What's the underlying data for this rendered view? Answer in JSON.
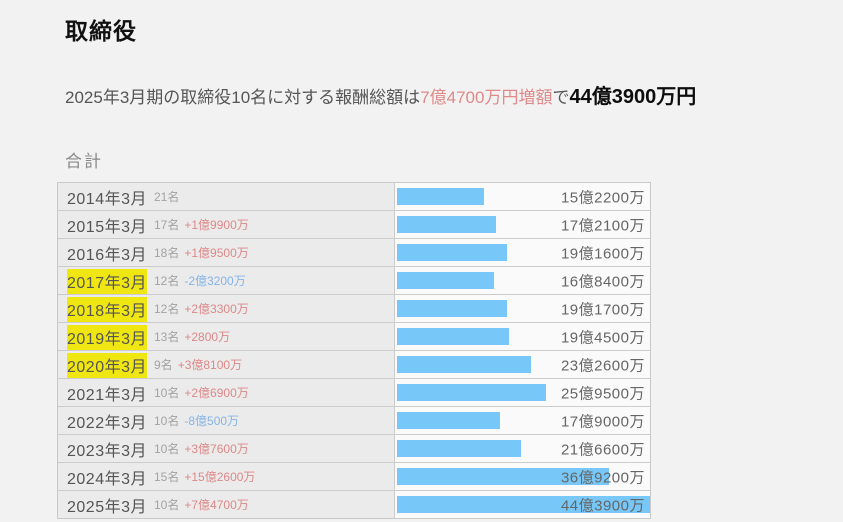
{
  "header": {
    "title": "取締役",
    "subtitle_lead": "2025年3月期の取締役10名に対する報酬総額は",
    "subtitle_increase": "7億4700万円増額",
    "subtitle_connector": "で",
    "subtitle_total": "44億3900万円"
  },
  "section": {
    "label": "合計"
  },
  "colors": {
    "bar": "#77c8f8",
    "highlight": "#f0e611",
    "increase_text": "#dd8888",
    "decrease_text": "#85b4e6",
    "page_background": "#f2f2f2"
  },
  "chart_data": {
    "type": "bar",
    "orientation": "horizontal",
    "title": "取締役 報酬総額 合計",
    "xlabel": "",
    "ylabel": "",
    "xlim_oku": [
      0,
      44.39
    ],
    "grid": false,
    "legend": "none",
    "unit": "億円",
    "categories": [
      "2014年3月",
      "2015年3月",
      "2016年3月",
      "2017年3月",
      "2018年3月",
      "2019年3月",
      "2020年3月",
      "2021年3月",
      "2022年3月",
      "2023年3月",
      "2024年3月",
      "2025年3月"
    ],
    "values_oku": [
      15.22,
      17.21,
      19.16,
      16.84,
      19.17,
      19.45,
      23.26,
      25.95,
      17.9,
      21.66,
      36.92,
      44.39
    ],
    "xmax_oku": 44.39,
    "rows": [
      {
        "year": "2014年3月",
        "members": "21名",
        "change": "",
        "change_type": "none",
        "value": "15億2200万",
        "oku": 15.22,
        "highlight": false
      },
      {
        "year": "2015年3月",
        "members": "17名",
        "change": "+1億9900万",
        "change_type": "up",
        "value": "17億2100万",
        "oku": 17.21,
        "highlight": false
      },
      {
        "year": "2016年3月",
        "members": "18名",
        "change": "+1億9500万",
        "change_type": "up",
        "value": "19億1600万",
        "oku": 19.16,
        "highlight": false
      },
      {
        "year": "2017年3月",
        "members": "12名",
        "change": "-2億3200万",
        "change_type": "down",
        "value": "16億8400万",
        "oku": 16.84,
        "highlight": true
      },
      {
        "year": "2018年3月",
        "members": "12名",
        "change": "+2億3300万",
        "change_type": "up",
        "value": "19億1700万",
        "oku": 19.17,
        "highlight": true
      },
      {
        "year": "2019年3月",
        "members": "13名",
        "change": "+2800万",
        "change_type": "up",
        "value": "19億4500万",
        "oku": 19.45,
        "highlight": true
      },
      {
        "year": "2020年3月",
        "members": "9名",
        "change": "+3億8100万",
        "change_type": "up",
        "value": "23億2600万",
        "oku": 23.26,
        "highlight": true
      },
      {
        "year": "2021年3月",
        "members": "10名",
        "change": "+2億6900万",
        "change_type": "up",
        "value": "25億9500万",
        "oku": 25.95,
        "highlight": false
      },
      {
        "year": "2022年3月",
        "members": "10名",
        "change": "-8億500万",
        "change_type": "down",
        "value": "17億9000万",
        "oku": 17.9,
        "highlight": false
      },
      {
        "year": "2023年3月",
        "members": "10名",
        "change": "+3億7600万",
        "change_type": "up",
        "value": "21億6600万",
        "oku": 21.66,
        "highlight": false
      },
      {
        "year": "2024年3月",
        "members": "15名",
        "change": "+15億2600万",
        "change_type": "up",
        "value": "36億9200万",
        "oku": 36.92,
        "highlight": false
      },
      {
        "year": "2025年3月",
        "members": "10名",
        "change": "+7億4700万",
        "change_type": "up",
        "value": "44億3900万",
        "oku": 44.39,
        "highlight": false
      }
    ]
  }
}
